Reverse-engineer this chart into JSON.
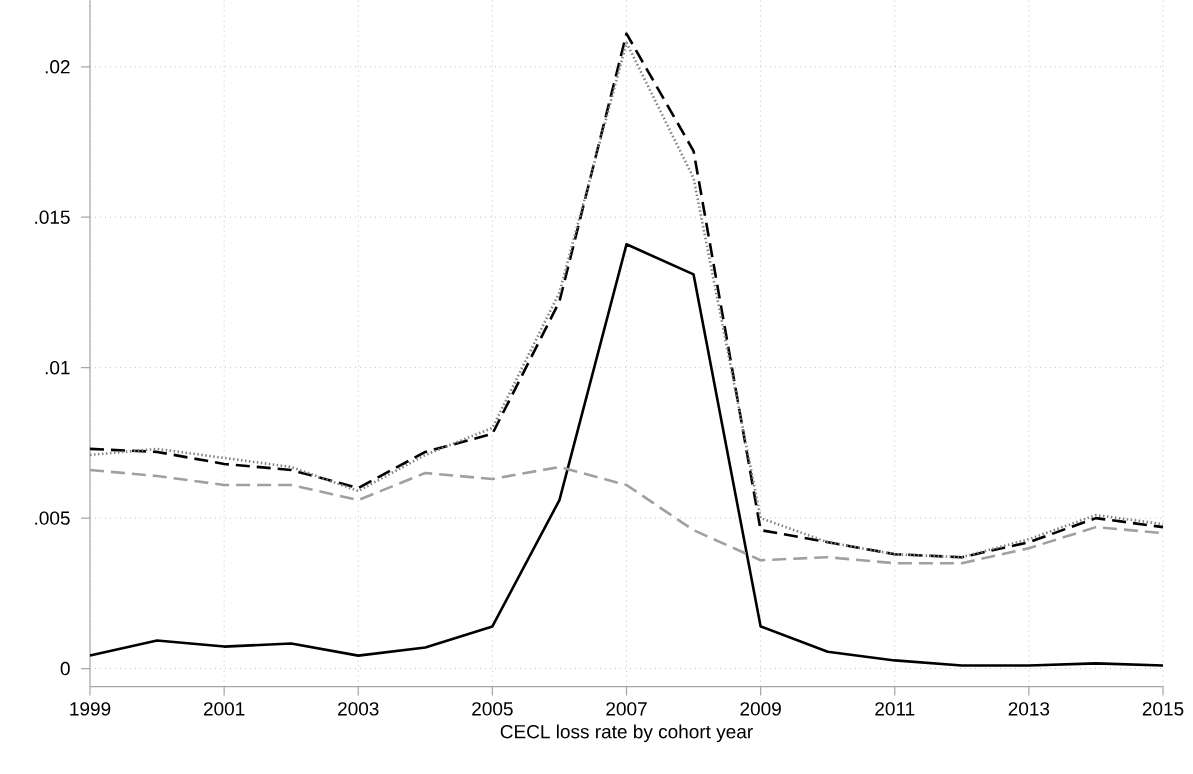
{
  "chart_data": {
    "type": "line",
    "xlabel": "CECL loss rate by cohort year",
    "x": [
      1999,
      2000,
      2001,
      2002,
      2003,
      2004,
      2005,
      2006,
      2007,
      2008,
      2009,
      2010,
      2011,
      2012,
      2013,
      2014,
      2015
    ],
    "series": [
      {
        "color": "#000000",
        "line_style": "solid",
        "values": [
          0.00043,
          0.00093,
          0.00073,
          0.00083,
          0.00043,
          0.0007,
          0.0014,
          0.0056,
          0.0141,
          0.0131,
          0.0014,
          0.00056,
          0.00027,
          0.0001,
          0.0001,
          0.00017,
          0.0001
        ]
      },
      {
        "color": "#a0a0a0",
        "line_style": "dashed",
        "values": [
          0.0066,
          0.0064,
          0.0061,
          0.0061,
          0.0056,
          0.0065,
          0.0063,
          0.0067,
          0.0061,
          0.0046,
          0.0036,
          0.0037,
          0.0035,
          0.0035,
          0.004,
          0.0047,
          0.0045
        ]
      },
      {
        "color": "#000000",
        "line_style": "dashed",
        "values": [
          0.0073,
          0.0072,
          0.0068,
          0.0066,
          0.006,
          0.0072,
          0.0078,
          0.0122,
          0.0211,
          0.0172,
          0.0046,
          0.0042,
          0.0038,
          0.0037,
          0.0042,
          0.005,
          0.0047
        ]
      },
      {
        "color": "#808080",
        "line_style": "dotted",
        "values": [
          0.0071,
          0.0073,
          0.007,
          0.0067,
          0.0059,
          0.0071,
          0.008,
          0.0125,
          0.0208,
          0.0163,
          0.005,
          0.0042,
          0.0038,
          0.0037,
          0.0043,
          0.0051,
          0.0048
        ]
      }
    ],
    "xlim": [
      1999,
      2015
    ],
    "ylim": [
      -0.0006,
      0.0222
    ],
    "xticks": [
      1999,
      2001,
      2003,
      2005,
      2007,
      2009,
      2011,
      2013,
      2015
    ],
    "yticks": [
      0,
      {
        "value": 0.005,
        "label": ".005"
      },
      {
        "value": 0.01,
        "label": ".01"
      },
      {
        "value": 0.015,
        "label": ".015"
      },
      {
        "value": 0.02,
        "label": ".02"
      }
    ],
    "grid": true
  }
}
